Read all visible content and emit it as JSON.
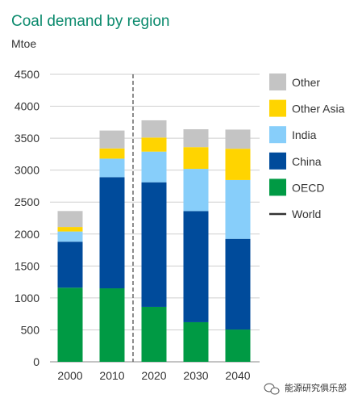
{
  "chart_data": {
    "type": "bar",
    "stacked": true,
    "title": "Coal demand by region",
    "ylabel": "Mtoe",
    "xlabel": "",
    "categories": [
      "2000",
      "2010",
      "2020",
      "2030",
      "2040"
    ],
    "ylim": [
      0,
      4500
    ],
    "yticks": [
      0,
      500,
      1000,
      1500,
      2000,
      2500,
      3000,
      3500,
      4000,
      4500
    ],
    "grid": true,
    "legend_position": "right",
    "series": [
      {
        "name": "OECD",
        "color": "#009a44",
        "values": [
          1160,
          1150,
          860,
          620,
          505
        ]
      },
      {
        "name": "China",
        "color": "#004b9b",
        "values": [
          720,
          1740,
          1950,
          1740,
          1420
        ]
      },
      {
        "name": "India",
        "color": "#87cefa",
        "values": [
          160,
          290,
          480,
          660,
          920
        ]
      },
      {
        "name": "Other Asia",
        "color": "#ffd400",
        "values": [
          70,
          160,
          220,
          340,
          490
        ]
      },
      {
        "name": "Other",
        "color": "#c4c4c4",
        "values": [
          250,
          280,
          270,
          280,
          300
        ]
      }
    ],
    "legend": [
      {
        "label": "Other",
        "kind": "box",
        "color": "#c4c4c4"
      },
      {
        "label": "Other Asia",
        "kind": "box",
        "color": "#ffd400"
      },
      {
        "label": "India",
        "kind": "box",
        "color": "#87cefa"
      },
      {
        "label": "China",
        "kind": "box",
        "color": "#004b9b"
      },
      {
        "label": "OECD",
        "kind": "box",
        "color": "#009a44"
      },
      {
        "label": "World",
        "kind": "line",
        "color": "#333333"
      }
    ],
    "divider_between": [
      "2010",
      "2020"
    ]
  },
  "watermark": {
    "text": "能源研究俱乐部",
    "icon": "wechat-icon"
  }
}
